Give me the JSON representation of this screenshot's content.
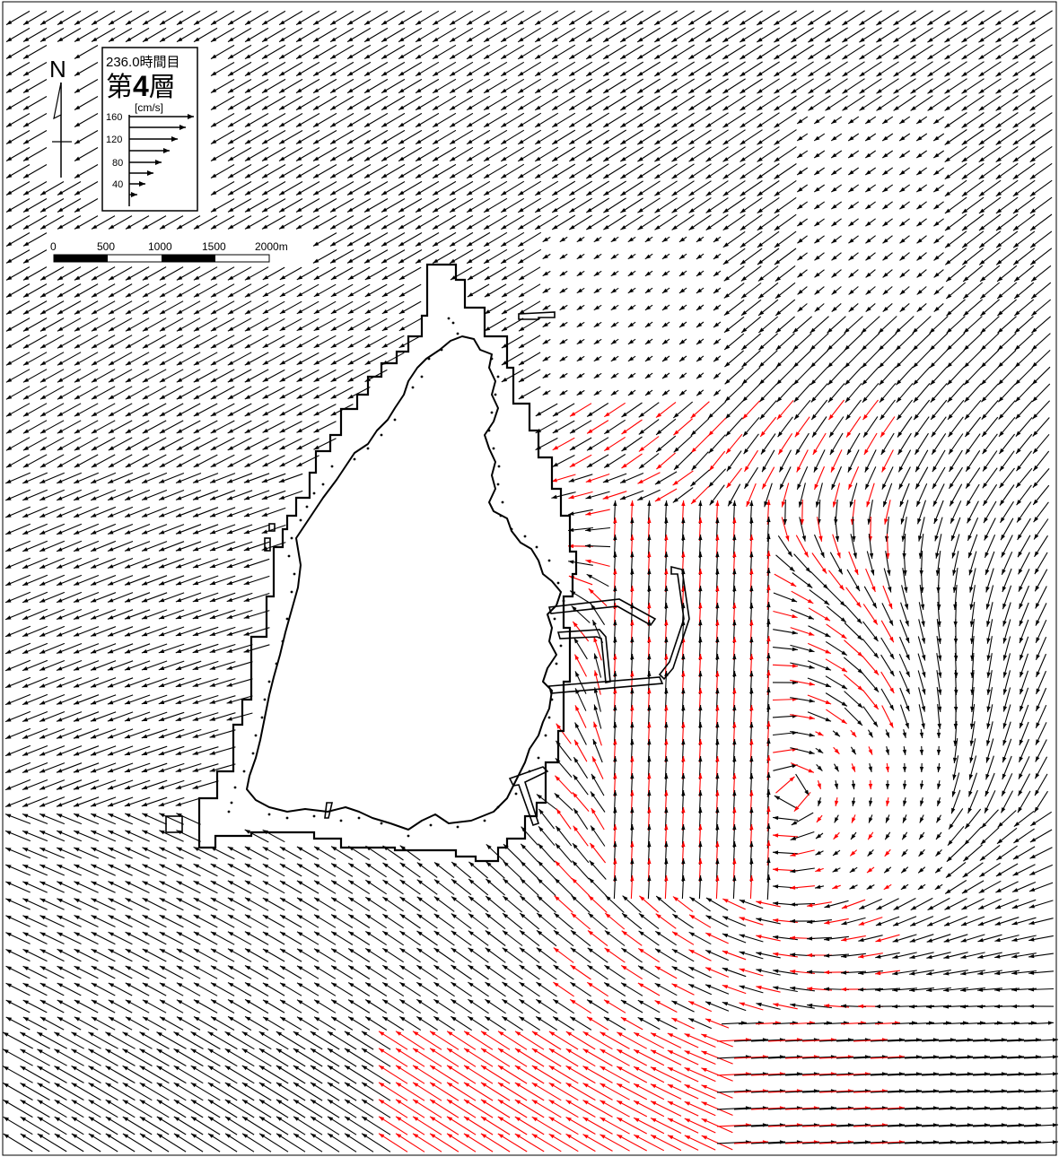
{
  "header": {
    "time_label": "236.0時間目",
    "layer_prefix": "第",
    "layer_number": "4",
    "layer_suffix": "層"
  },
  "north_arrow": {
    "label": "N",
    "icon": "north-arrow-icon"
  },
  "velocity_legend": {
    "unit": "[cm/s]",
    "ticks": [
      {
        "label": "160",
        "value": 160
      },
      {
        "label": "120",
        "value": 120
      },
      {
        "label": "80",
        "value": 80
      },
      {
        "label": "40",
        "value": 40
      }
    ]
  },
  "scale_bar": {
    "labels": [
      "0",
      "500",
      "1000",
      "1500",
      "2000m"
    ],
    "colors": [
      "#000000",
      "#ffffff",
      "#000000",
      "#ffffff"
    ]
  },
  "colors": {
    "vector_primary": "#000000",
    "vector_overlay": "#ff0000",
    "land": "#ffffff",
    "outline": "#000000"
  }
}
